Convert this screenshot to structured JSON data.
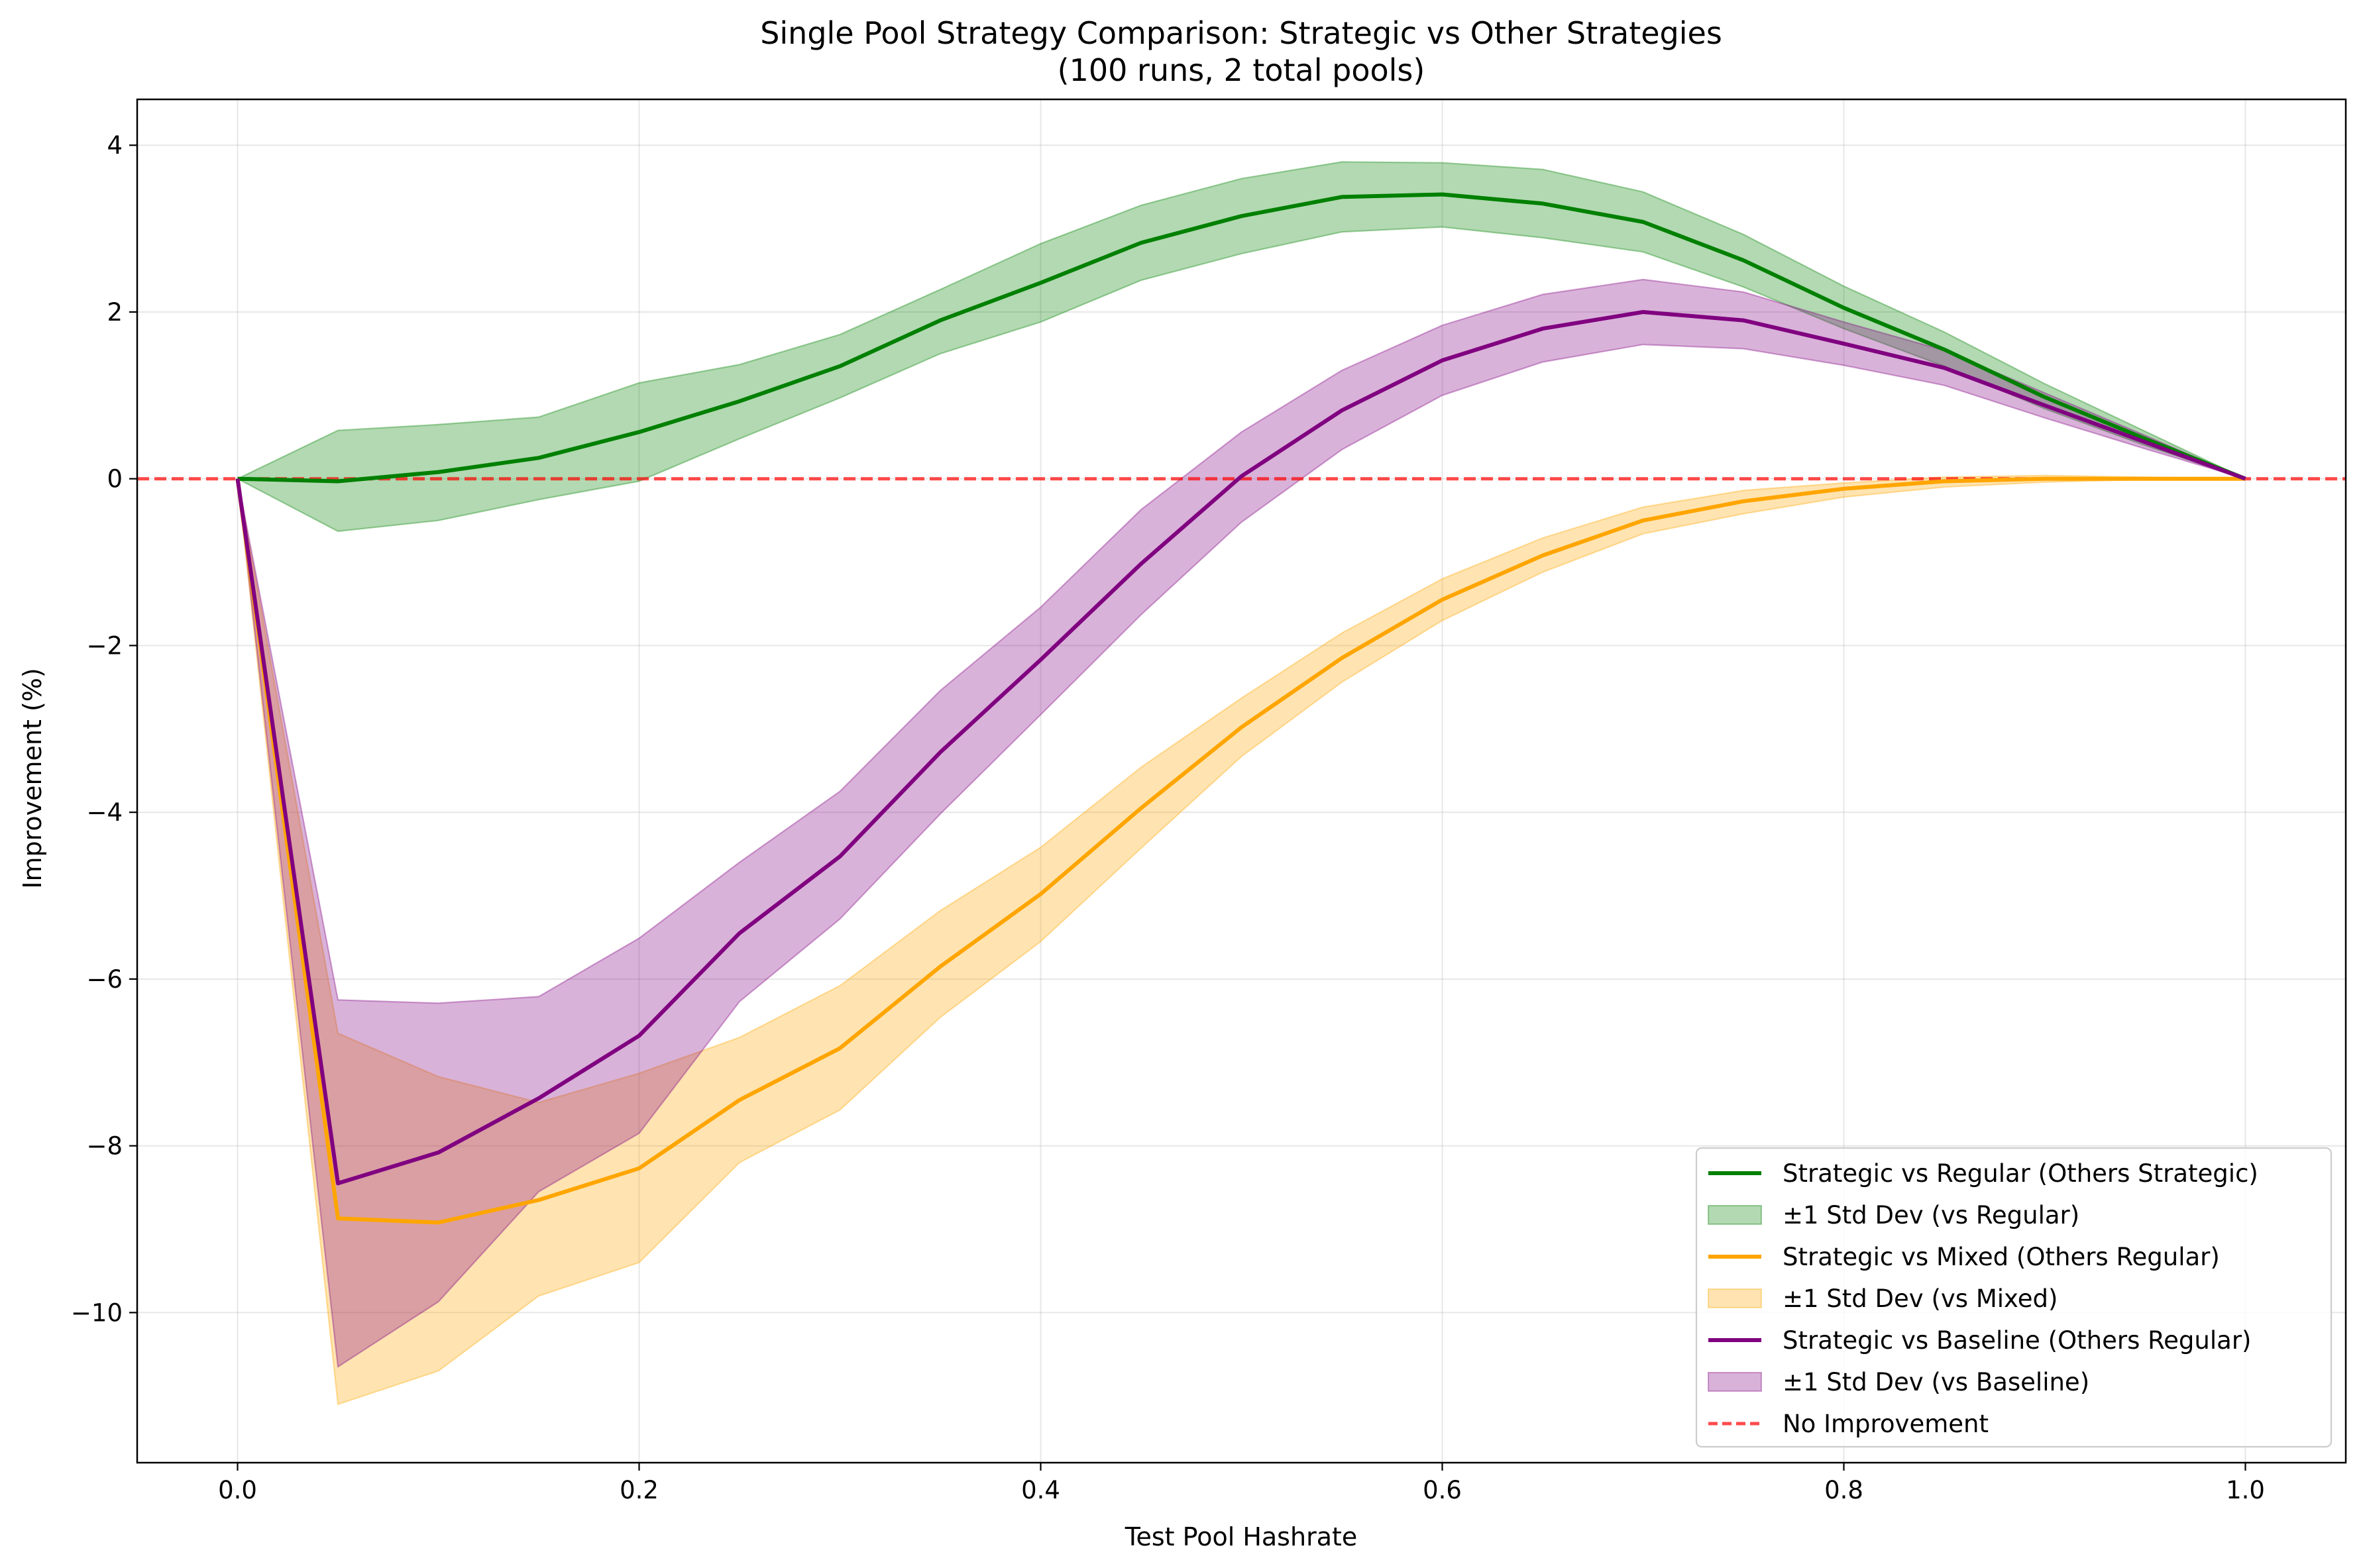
{
  "chart_data": {
    "type": "line",
    "title": "Single Pool Strategy Comparison: Strategic vs Other Strategies",
    "subtitle": "(100 runs, 2 total pools)",
    "xlabel": "Test Pool Hashrate",
    "ylabel": "Improvement (%)",
    "xlim": [
      -0.05,
      1.05
    ],
    "ylim": [
      -11.8,
      4.55
    ],
    "grid": true,
    "legend_position": "lower-right",
    "x_ticks": [
      {
        "value": 0.0,
        "label": "0.0"
      },
      {
        "value": 0.2,
        "label": "0.2"
      },
      {
        "value": 0.4,
        "label": "0.4"
      },
      {
        "value": 0.6,
        "label": "0.6"
      },
      {
        "value": 0.8,
        "label": "0.8"
      },
      {
        "value": 1.0,
        "label": "1.0"
      }
    ],
    "y_ticks": [
      {
        "value": 4,
        "label": "4"
      },
      {
        "value": 2,
        "label": "2"
      },
      {
        "value": 0,
        "label": "0"
      },
      {
        "value": -2,
        "label": "−2"
      },
      {
        "value": -4,
        "label": "−4"
      },
      {
        "value": -6,
        "label": "−6"
      },
      {
        "value": -8,
        "label": "−8"
      },
      {
        "value": -10,
        "label": "−10"
      }
    ],
    "x": [
      0.0,
      0.05,
      0.1,
      0.15,
      0.2,
      0.25,
      0.3,
      0.35,
      0.4,
      0.45,
      0.5,
      0.55,
      0.6,
      0.65,
      0.7,
      0.75,
      0.8,
      0.85,
      0.9,
      0.95,
      1.0
    ],
    "series": [
      {
        "name": "Strategic vs Regular (Others Strategic)",
        "band_name": "±1 Std Dev (vs Regular)",
        "color": "#008000",
        "values": [
          0.0,
          -0.03,
          0.08,
          0.25,
          0.56,
          0.93,
          1.35,
          1.9,
          2.35,
          2.83,
          3.15,
          3.38,
          3.41,
          3.3,
          3.08,
          2.62,
          2.05,
          1.55,
          0.98,
          0.48,
          0.0
        ],
        "lower": [
          0.0,
          -0.63,
          -0.5,
          -0.25,
          -0.03,
          0.48,
          0.97,
          1.5,
          1.88,
          2.38,
          2.7,
          2.96,
          3.02,
          2.89,
          2.72,
          2.3,
          1.8,
          1.35,
          0.84,
          0.4,
          0.0
        ],
        "upper": [
          0.0,
          0.58,
          0.65,
          0.74,
          1.15,
          1.37,
          1.73,
          2.27,
          2.82,
          3.28,
          3.6,
          3.8,
          3.79,
          3.71,
          3.44,
          2.93,
          2.31,
          1.76,
          1.14,
          0.57,
          0.0
        ]
      },
      {
        "name": "Strategic vs Mixed (Others Regular)",
        "band_name": "±1 Std Dev (vs Mixed)",
        "color": "#FFA500",
        "values": [
          0.0,
          -8.87,
          -8.92,
          -8.65,
          -8.27,
          -7.45,
          -6.83,
          -5.85,
          -4.98,
          -3.95,
          -2.98,
          -2.15,
          -1.45,
          -0.92,
          -0.5,
          -0.27,
          -0.12,
          -0.03,
          0.0,
          0.0,
          0.0
        ],
        "lower": [
          0.0,
          -11.1,
          -10.7,
          -9.8,
          -9.4,
          -8.2,
          -7.57,
          -6.46,
          -5.55,
          -4.43,
          -3.33,
          -2.44,
          -1.7,
          -1.12,
          -0.66,
          -0.42,
          -0.22,
          -0.1,
          -0.04,
          -0.01,
          0.0
        ],
        "upper": [
          0.0,
          -6.65,
          -7.17,
          -7.48,
          -7.13,
          -6.7,
          -6.08,
          -5.18,
          -4.42,
          -3.46,
          -2.63,
          -1.85,
          -1.2,
          -0.71,
          -0.34,
          -0.14,
          -0.05,
          0.02,
          0.04,
          0.02,
          0.0
        ]
      },
      {
        "name": "Strategic vs Baseline (Others Regular)",
        "band_name": "±1 Std Dev (vs Baseline)",
        "color": "#800080",
        "values": [
          0.0,
          -8.45,
          -8.08,
          -7.43,
          -6.68,
          -5.45,
          -4.53,
          -3.28,
          -2.17,
          -1.02,
          0.03,
          0.82,
          1.42,
          1.8,
          2.0,
          1.9,
          1.62,
          1.33,
          0.88,
          0.44,
          0.0
        ],
        "lower": [
          0.0,
          -10.65,
          -9.87,
          -8.55,
          -7.85,
          -6.27,
          -5.28,
          -4.02,
          -2.83,
          -1.63,
          -0.52,
          0.35,
          1.0,
          1.4,
          1.61,
          1.56,
          1.36,
          1.12,
          0.73,
          0.36,
          0.0
        ],
        "upper": [
          0.0,
          -6.25,
          -6.29,
          -6.21,
          -5.51,
          -4.6,
          -3.75,
          -2.54,
          -1.54,
          -0.37,
          0.56,
          1.3,
          1.84,
          2.21,
          2.39,
          2.24,
          1.88,
          1.54,
          1.03,
          0.52,
          0.0
        ]
      }
    ],
    "reference_line": {
      "name": "No Improvement",
      "y": 0,
      "color": "#FF0000"
    }
  }
}
